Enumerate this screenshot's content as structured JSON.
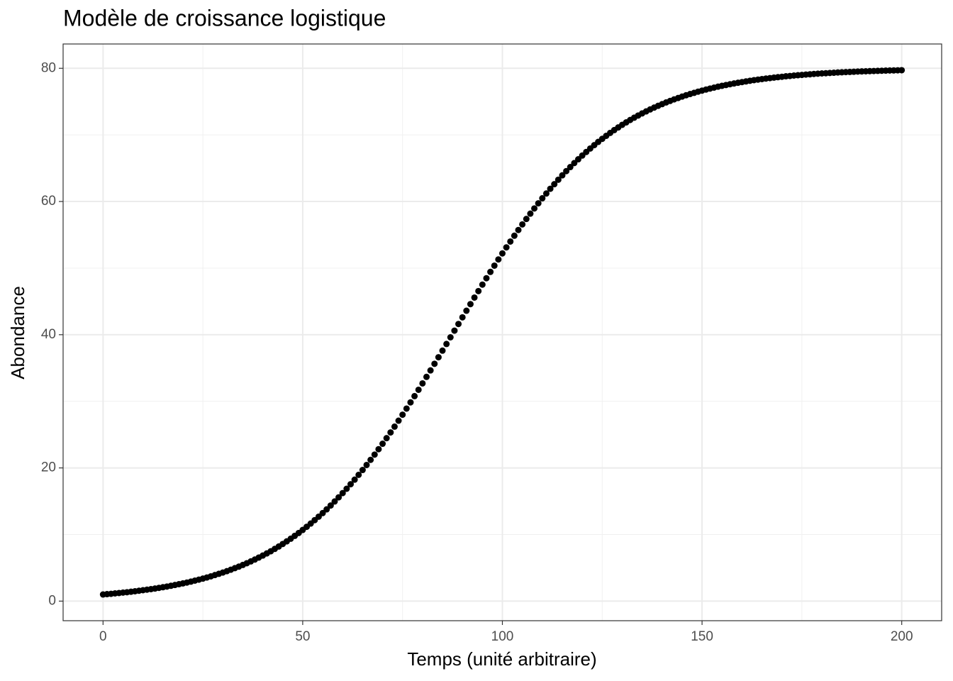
{
  "chart_data": {
    "type": "scatter",
    "title": "Modèle de croissance logistique",
    "x_label": "Temps (unité arbitraire)",
    "y_label": "Abondance",
    "color": "#000000",
    "grid": true,
    "xlim": [
      -10,
      210
    ],
    "ylim": [
      -2.94,
      83.65
    ],
    "xticks": [
      0,
      50,
      100,
      150,
      200
    ],
    "yticks": [
      0,
      20,
      40,
      60,
      80
    ],
    "minor_xticks": [
      25,
      75,
      125,
      175
    ],
    "minor_yticks": [
      10,
      30,
      50,
      70
    ],
    "x": [
      0,
      1,
      2,
      3,
      4,
      5,
      6,
      7,
      8,
      9,
      10,
      11,
      12,
      13,
      14,
      15,
      16,
      17,
      18,
      19,
      20,
      21,
      22,
      23,
      24,
      25,
      26,
      27,
      28,
      29,
      30,
      31,
      32,
      33,
      34,
      35,
      36,
      37,
      38,
      39,
      40,
      41,
      42,
      43,
      44,
      45,
      46,
      47,
      48,
      49,
      50,
      51,
      52,
      53,
      54,
      55,
      56,
      57,
      58,
      59,
      60,
      61,
      62,
      63,
      64,
      65,
      66,
      67,
      68,
      69,
      70,
      71,
      72,
      73,
      74,
      75,
      76,
      77,
      78,
      79,
      80,
      81,
      82,
      83,
      84,
      85,
      86,
      87,
      88,
      89,
      90,
      91,
      92,
      93,
      94,
      95,
      96,
      97,
      98,
      99,
      100,
      101,
      102,
      103,
      104,
      105,
      106,
      107,
      108,
      109,
      110,
      111,
      112,
      113,
      114,
      115,
      116,
      117,
      118,
      119,
      120,
      121,
      122,
      123,
      124,
      125,
      126,
      127,
      128,
      129,
      130,
      131,
      132,
      133,
      134,
      135,
      136,
      137,
      138,
      139,
      140,
      141,
      142,
      143,
      144,
      145,
      146,
      147,
      148,
      149,
      150,
      151,
      152,
      153,
      154,
      155,
      156,
      157,
      158,
      159,
      160,
      161,
      162,
      163,
      164,
      165,
      166,
      167,
      168,
      169,
      170,
      171,
      172,
      173,
      174,
      175,
      176,
      177,
      178,
      179,
      180,
      181,
      182,
      183,
      184,
      185,
      186,
      187,
      188,
      189,
      190,
      191,
      192,
      193,
      194,
      195,
      196,
      197,
      198,
      199,
      200
    ],
    "values": [
      1.0,
      1.05,
      1.1,
      1.16,
      1.22,
      1.28,
      1.34,
      1.41,
      1.48,
      1.56,
      1.64,
      1.72,
      1.8,
      1.89,
      1.99,
      2.09,
      2.19,
      2.3,
      2.42,
      2.54,
      2.66,
      2.79,
      2.93,
      3.08,
      3.23,
      3.38,
      3.55,
      3.72,
      3.91,
      4.1,
      4.29,
      4.5,
      4.72,
      4.95,
      5.18,
      5.43,
      5.69,
      5.96,
      6.24,
      6.54,
      6.84,
      7.16,
      7.49,
      7.84,
      8.2,
      8.58,
      8.97,
      9.37,
      9.8,
      10.23,
      10.69,
      11.16,
      11.65,
      12.16,
      12.68,
      13.22,
      13.78,
      14.36,
      14.96,
      15.58,
      16.22,
      16.87,
      17.55,
      18.24,
      18.96,
      19.69,
      20.44,
      21.21,
      22.0,
      22.81,
      23.63,
      24.47,
      25.33,
      26.2,
      27.09,
      27.99,
      28.91,
      29.84,
      30.78,
      31.73,
      32.69,
      33.67,
      34.64,
      35.63,
      36.62,
      37.61,
      38.61,
      39.61,
      40.61,
      41.61,
      42.61,
      43.6,
      44.59,
      45.58,
      46.55,
      47.52,
      48.48,
      49.43,
      50.37,
      51.3,
      52.21,
      53.11,
      53.99,
      54.86,
      55.72,
      56.56,
      57.38,
      58.18,
      58.96,
      59.73,
      60.48,
      61.2,
      61.91,
      62.6,
      63.27,
      63.93,
      64.56,
      65.17,
      65.77,
      66.34,
      66.9,
      67.44,
      67.96,
      68.46,
      68.95,
      69.41,
      69.86,
      70.3,
      70.72,
      71.12,
      71.51,
      71.88,
      72.24,
      72.58,
      72.91,
      73.23,
      73.53,
      73.82,
      74.1,
      74.37,
      74.62,
      74.87,
      75.1,
      75.33,
      75.54,
      75.75,
      75.95,
      76.14,
      76.31,
      76.49,
      76.65,
      76.81,
      76.96,
      77.1,
      77.24,
      77.37,
      77.49,
      77.61,
      77.72,
      77.83,
      77.93,
      78.03,
      78.13,
      78.22,
      78.3,
      78.38,
      78.46,
      78.53,
      78.6,
      78.67,
      78.73,
      78.8,
      78.85,
      78.91,
      78.96,
      79.01,
      79.06,
      79.1,
      79.15,
      79.19,
      79.23,
      79.26,
      79.3,
      79.33,
      79.37,
      79.4,
      79.43,
      79.45,
      79.48,
      79.51,
      79.53,
      79.55,
      79.57,
      79.59,
      79.61,
      79.63,
      79.65,
      79.67,
      79.68,
      79.7,
      79.71
    ]
  }
}
